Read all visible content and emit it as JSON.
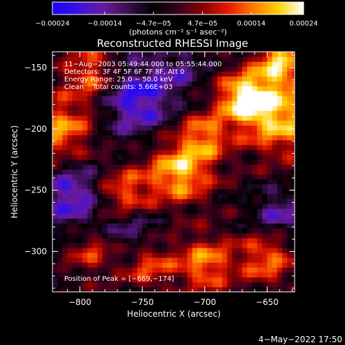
{
  "chart_data": {
    "type": "heatmap",
    "title": "Reconstructed RHESSI Image",
    "xlabel": "Heliocentric X (arcsec)",
    "ylabel": "Heliocentric Y (arcsec)",
    "xlim": [
      -822,
      -628
    ],
    "ylim": [
      -333,
      -137
    ],
    "x_ticks": [
      {
        "value": -800,
        "label": "−800"
      },
      {
        "value": -750,
        "label": "−750"
      },
      {
        "value": -700,
        "label": "−700"
      },
      {
        "value": -650,
        "label": "−650"
      }
    ],
    "y_ticks": [
      {
        "value": -150,
        "label": "−150"
      },
      {
        "value": -200,
        "label": "−200"
      },
      {
        "value": -250,
        "label": "−250"
      },
      {
        "value": -300,
        "label": "−300"
      }
    ],
    "colorbar": {
      "range": [
        -0.00024,
        0.00024
      ],
      "ticks": [
        {
          "value": -0.00024,
          "label": "−0.00024"
        },
        {
          "value": -0.00014,
          "label": "−0.00014"
        },
        {
          "value": -4.7e-05,
          "label": "−4.7e−05"
        },
        {
          "value": 4.7e-05,
          "label": "4.7e−05"
        },
        {
          "value": 0.00014,
          "label": "0.00014"
        },
        {
          "value": 0.00024,
          "label": "0.00024"
        }
      ],
      "unit": "(photons cm⁻² s⁻¹ asec⁻²)",
      "colors": [
        "#1a00ff",
        "#3a10e0",
        "#6a1aa0",
        "#3a1050",
        "#000000",
        "#3a0020",
        "#880000",
        "#e61a00",
        "#ff7a00",
        "#ffd000",
        "#ffffff"
      ]
    },
    "annotations": {
      "time_range": "11−Aug−2003 05:49:44.000 to 05:55:44.000",
      "detectors": "Detectors: 3F 4F 5F 6F 7F 8F, Att 0",
      "energy_range": "Energy Range: 25.0 − 50.0 keV",
      "algorithm": "Clean    Total counts: 5.66E+03",
      "peak": "Position of Peak = [−669,−174]"
    },
    "hot_regions": [
      {
        "x": -720,
        "y": -235,
        "amplitude": 0.00022,
        "width": 18
      },
      {
        "x": -640,
        "y": -190,
        "amplitude": 0.00022,
        "width": 22
      },
      {
        "x": -669,
        "y": -174,
        "amplitude": 0.00024,
        "width": 14
      },
      {
        "x": -700,
        "y": -205,
        "amplitude": 0.00016,
        "width": 14
      },
      {
        "x": -765,
        "y": -255,
        "amplitude": 0.00018,
        "width": 16
      },
      {
        "x": -815,
        "y": -200,
        "amplitude": 0.00018,
        "width": 18
      },
      {
        "x": -790,
        "y": -155,
        "amplitude": 0.00016,
        "width": 16
      },
      {
        "x": -700,
        "y": -310,
        "amplitude": 0.00018,
        "width": 16
      },
      {
        "x": -650,
        "y": -305,
        "amplitude": 0.00016,
        "width": 16
      },
      {
        "x": -640,
        "y": -145,
        "amplitude": 0.0002,
        "width": 14
      },
      {
        "x": -790,
        "y": -300,
        "amplitude": 0.00012,
        "width": 14
      },
      {
        "x": -745,
        "y": -310,
        "amplitude": 0.00014,
        "width": 14
      }
    ],
    "cold_regions": [
      {
        "x": -755,
        "y": -175,
        "amplitude": -0.00018,
        "width": 20
      },
      {
        "x": -805,
        "y": -255,
        "amplitude": -0.00016,
        "width": 18
      },
      {
        "x": -760,
        "y": -280,
        "amplitude": -0.00012,
        "width": 16
      },
      {
        "x": -640,
        "y": -270,
        "amplitude": -0.00012,
        "width": 14
      },
      {
        "x": -720,
        "y": -150,
        "amplitude": -8e-05,
        "width": 14
      }
    ]
  },
  "footer": {
    "date": "4−May−2022 17:50"
  }
}
